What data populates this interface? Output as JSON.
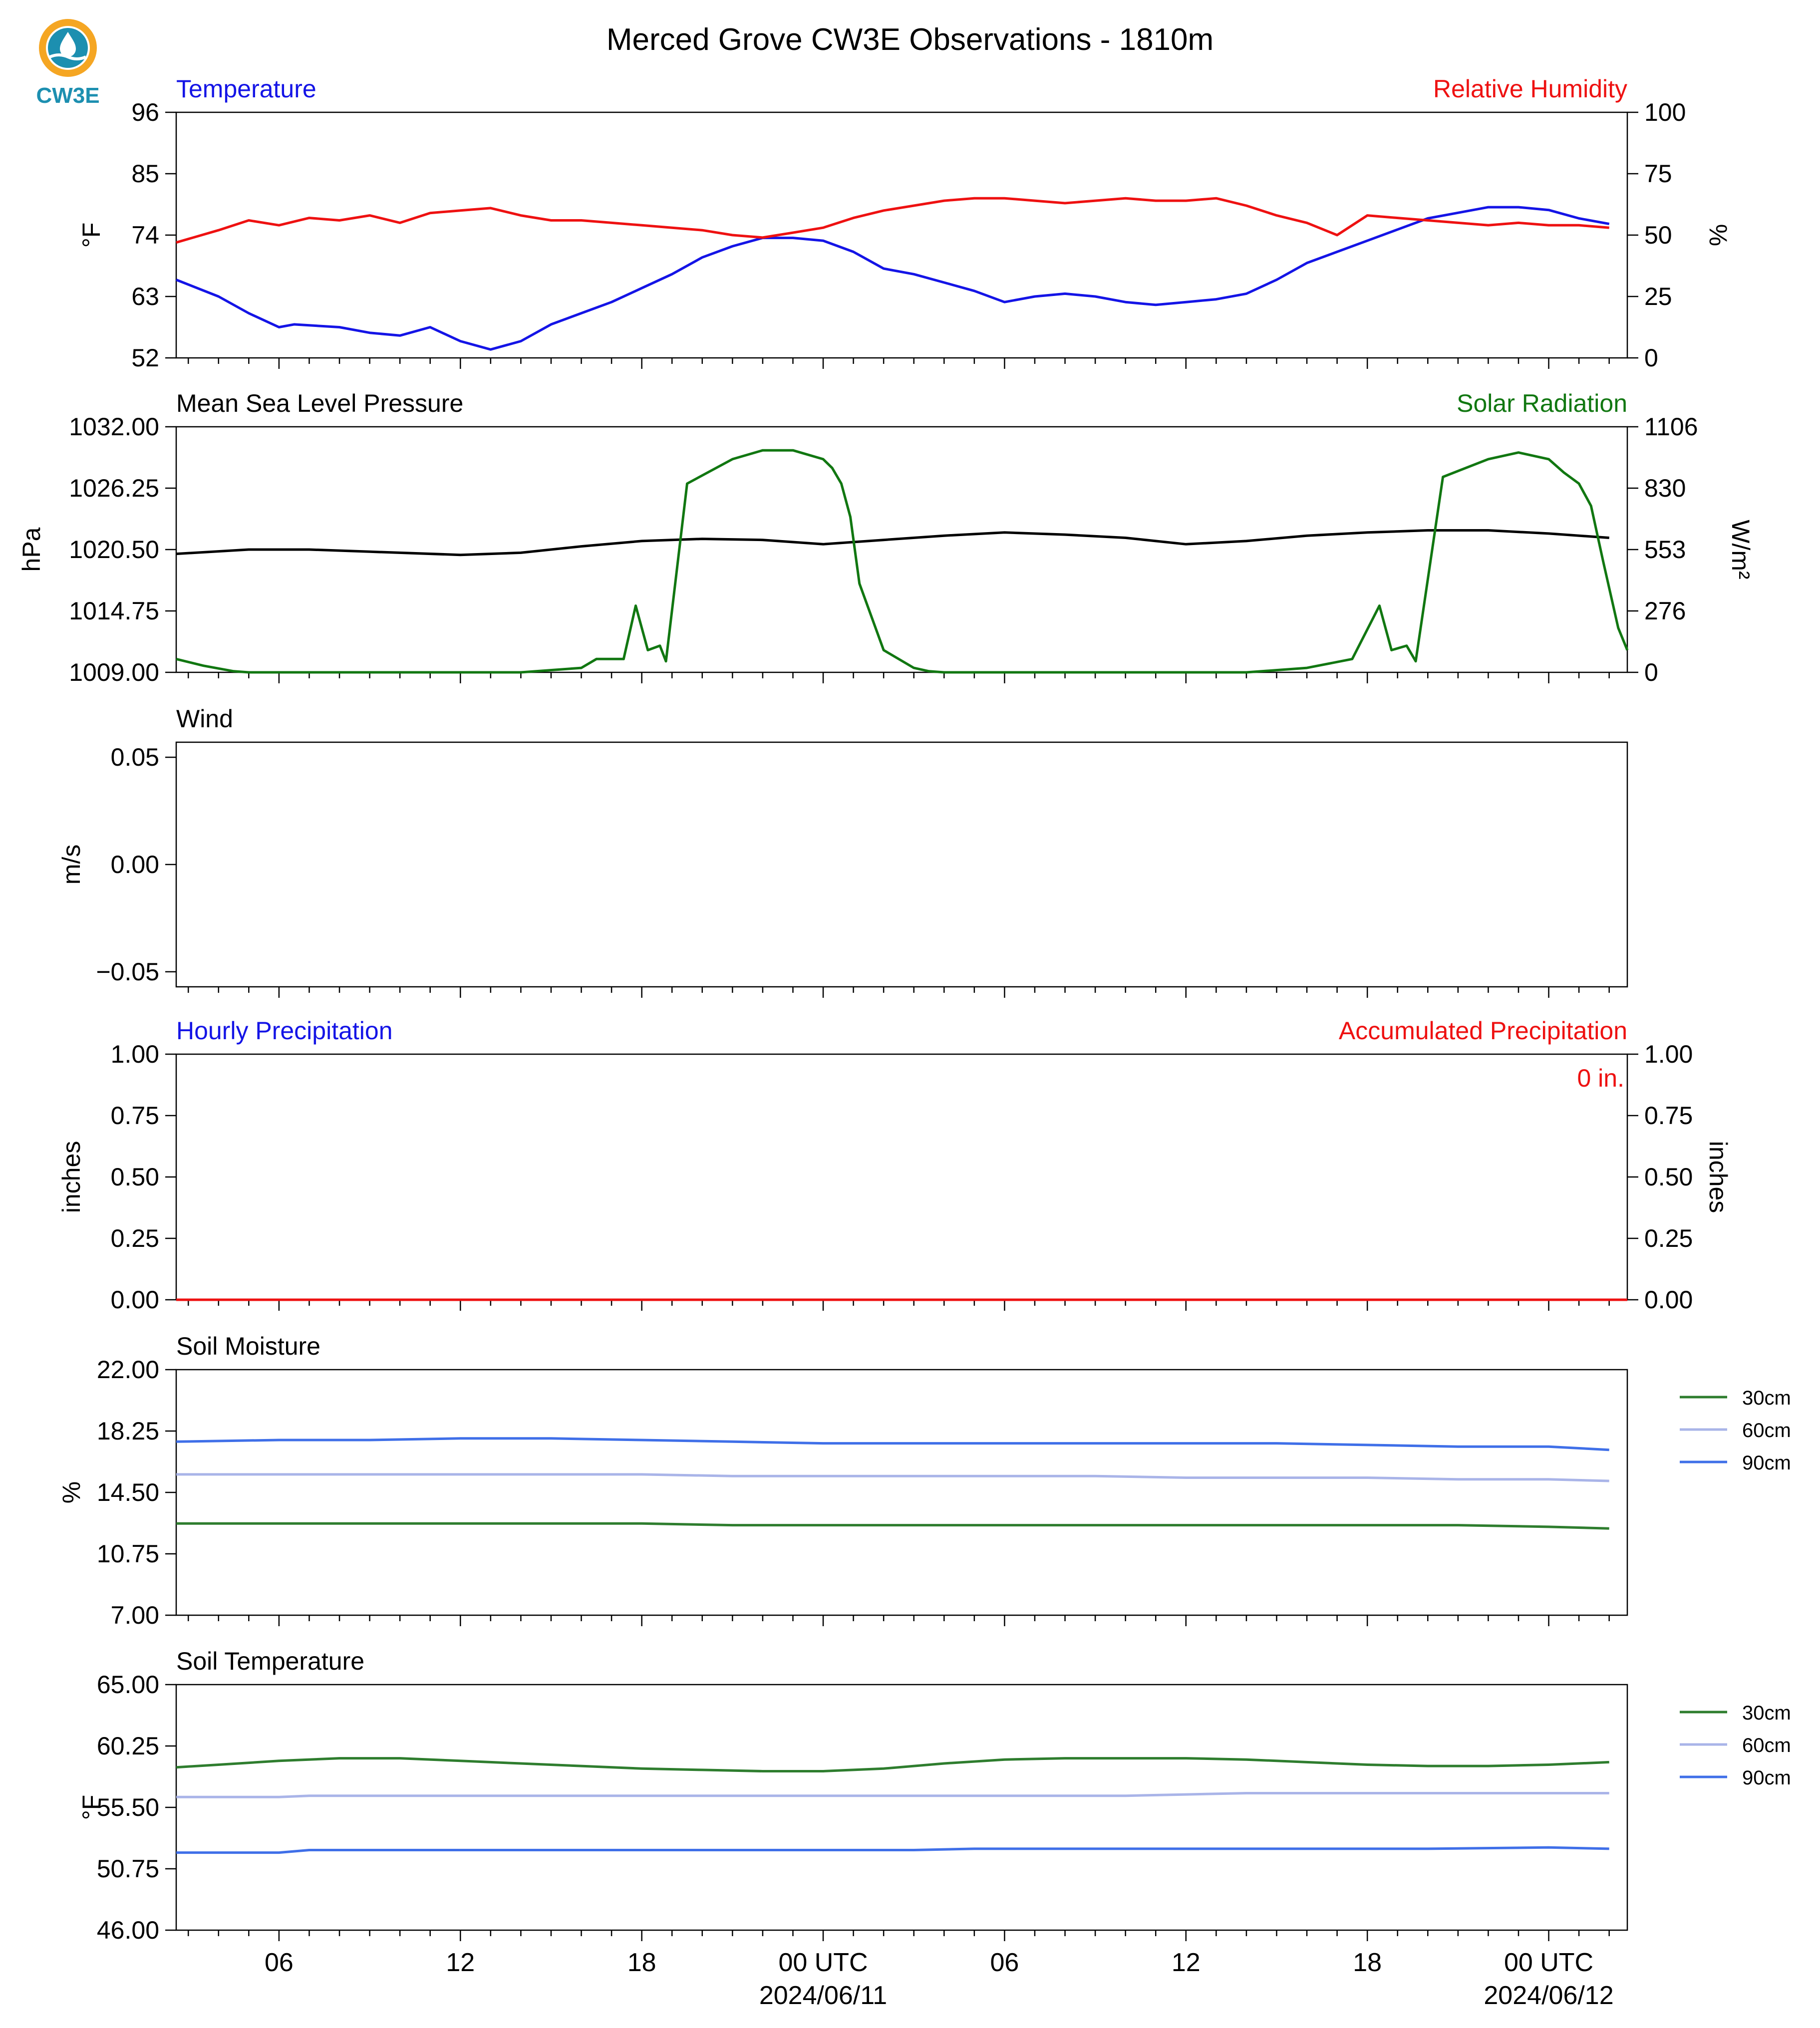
{
  "page": {
    "title": "Merced Grove CW3E Observations - 1810m",
    "logo_text": "CW3E"
  },
  "colors": {
    "blue": "#1414e6",
    "red": "#ee1111",
    "green": "#117711",
    "black": "#000000",
    "soil30": "#2e7d2e",
    "soil60": "#a9b4e8",
    "soil90": "#3f6fe8",
    "logo_orange": "#f5a623",
    "logo_teal": "#1c8fb0"
  },
  "x_axis": {
    "range_hours": [
      -21.4,
      26.6
    ],
    "ticks": [
      {
        "h": -18,
        "label": "06",
        "sub": ""
      },
      {
        "h": -12,
        "label": "12",
        "sub": ""
      },
      {
        "h": -6,
        "label": "18",
        "sub": ""
      },
      {
        "h": 0,
        "label": "00 UTC",
        "sub": "2024/06/11"
      },
      {
        "h": 6,
        "label": "06",
        "sub": ""
      },
      {
        "h": 12,
        "label": "12",
        "sub": ""
      },
      {
        "h": 18,
        "label": "18",
        "sub": ""
      },
      {
        "h": 24,
        "label": "00 UTC",
        "sub": "2024/06/12"
      }
    ]
  },
  "chart_data": [
    {
      "type": "line",
      "title_left": "Temperature",
      "title_right": "Relative Humidity",
      "ylabel_left": "°F",
      "ylabel_right": "%",
      "ylim_left": [
        52,
        96
      ],
      "ylim_right": [
        0,
        100
      ],
      "yticks_left": [
        "52",
        "63",
        "74",
        "85",
        "96"
      ],
      "yticks_right": [
        "0",
        "25",
        "50",
        "75",
        "100"
      ],
      "series": [
        {
          "name": "Temperature",
          "axis": "left",
          "color": "blue",
          "x": [
            -21.4,
            -20,
            -19,
            -18,
            -17.5,
            -16,
            -15,
            -14,
            -13,
            -12,
            -11,
            -10,
            -9,
            -8,
            -7,
            -6,
            -5,
            -4,
            -3,
            -2,
            -1,
            0,
            1,
            2,
            3,
            4,
            5,
            6,
            7,
            8,
            9,
            10,
            11,
            12,
            13,
            14,
            15,
            16,
            17,
            18,
            19,
            20,
            21,
            22,
            23,
            24,
            25,
            26
          ],
          "y": [
            66,
            63,
            60,
            57.5,
            58,
            57.5,
            56.5,
            56,
            57.5,
            55,
            53.5,
            55,
            58,
            60,
            62,
            64.5,
            67,
            70,
            72,
            73.5,
            73.5,
            73,
            71,
            68,
            67,
            65.5,
            64,
            62,
            63,
            63.5,
            63,
            62,
            61.5,
            62,
            62.5,
            63.5,
            66,
            69,
            71,
            73,
            75,
            77,
            78,
            79,
            79,
            78.5,
            77,
            76
          ]
        },
        {
          "name": "Relative Humidity",
          "axis": "right",
          "color": "red",
          "x": [
            -21.4,
            -20,
            -19,
            -18,
            -17,
            -16,
            -15,
            -14,
            -13,
            -12,
            -11,
            -10,
            -9,
            -8,
            -7,
            -6,
            -5,
            -4,
            -3,
            -2,
            -1,
            0,
            1,
            2,
            3,
            4,
            5,
            6,
            7,
            8,
            9,
            10,
            11,
            12,
            13,
            14,
            15,
            16,
            17,
            18,
            19,
            20,
            21,
            22,
            23,
            24,
            25,
            26
          ],
          "y": [
            47,
            52,
            56,
            54,
            57,
            56,
            58,
            55,
            59,
            60,
            61,
            58,
            56,
            56,
            55,
            54,
            53,
            52,
            50,
            49,
            51,
            53,
            57,
            60,
            62,
            64,
            65,
            65,
            64,
            63,
            64,
            65,
            64,
            64,
            65,
            62,
            58,
            55,
            50,
            58,
            57,
            56,
            55,
            54,
            55,
            54,
            54,
            53
          ]
        }
      ]
    },
    {
      "type": "line",
      "title_left": "Mean Sea Level Pressure",
      "title_right": "Solar Radiation",
      "ylabel_left": "hPa",
      "ylabel_right": "W/m²",
      "ylim_left": [
        1009,
        1032
      ],
      "ylim_right": [
        0,
        1106
      ],
      "yticks_left": [
        "1009.00",
        "1014.75",
        "1020.50",
        "1026.25",
        "1032.00"
      ],
      "yticks_right": [
        "0",
        "276",
        "553",
        "830",
        "1106"
      ],
      "series": [
        {
          "name": "Mean Sea Level Pressure",
          "axis": "left",
          "color": "black",
          "x": [
            -21.4,
            -19,
            -17,
            -15,
            -12,
            -10,
            -8,
            -6,
            -4,
            -2,
            0,
            2,
            4,
            6,
            8,
            10,
            12,
            14,
            16,
            18,
            20,
            22,
            24,
            26
          ],
          "y": [
            1020.1,
            1020.5,
            1020.5,
            1020.3,
            1020.0,
            1020.2,
            1020.8,
            1021.3,
            1021.5,
            1021.4,
            1021.0,
            1021.4,
            1021.8,
            1022.1,
            1021.9,
            1021.6,
            1021.0,
            1021.3,
            1021.8,
            1022.1,
            1022.3,
            1022.3,
            1022.0,
            1021.6
          ]
        },
        {
          "name": "Solar Radiation",
          "axis": "right",
          "color": "green",
          "x": [
            -21.4,
            -20.5,
            -19.5,
            -19,
            -10,
            -8,
            -7.5,
            -6.6,
            -6.2,
            -5.8,
            -5.4,
            -5.2,
            -4.5,
            -3,
            -2,
            -1,
            0,
            0.3,
            0.6,
            0.9,
            1.2,
            2,
            3,
            3.5,
            4,
            14,
            16,
            17.5,
            18.4,
            18.8,
            19.3,
            19.6,
            20.5,
            22,
            23,
            24,
            24.5,
            25,
            25.4,
            25.8,
            26.3,
            26.6
          ],
          "y": [
            60,
            30,
            5,
            0,
            0,
            20,
            60,
            60,
            300,
            100,
            120,
            50,
            850,
            960,
            1000,
            1000,
            960,
            920,
            850,
            700,
            400,
            100,
            20,
            5,
            0,
            0,
            20,
            60,
            300,
            100,
            120,
            50,
            880,
            960,
            990,
            960,
            900,
            850,
            750,
            500,
            200,
            100
          ]
        }
      ]
    },
    {
      "type": "line",
      "title_left": "Wind",
      "ylabel_left": "m/s",
      "ylim_left": [
        -0.057,
        0.057
      ],
      "yticks_left": [
        "−0.05",
        "0.00",
        "0.05"
      ],
      "series": []
    },
    {
      "type": "line",
      "title_left": "Hourly Precipitation",
      "title_right": "Accumulated Precipitation",
      "ylabel_left": "inches",
      "ylabel_right": "inches",
      "ylim_left": [
        0,
        1
      ],
      "ylim_right": [
        0,
        1
      ],
      "yticks_left": [
        "0.00",
        "0.25",
        "0.50",
        "0.75",
        "1.00"
      ],
      "yticks_right": [
        "0.00",
        "0.25",
        "0.50",
        "0.75",
        "1.00"
      ],
      "annotation": "0 in.",
      "series": [
        {
          "name": "Hourly Precipitation",
          "axis": "left",
          "color": "blue",
          "x": [
            -21.4,
            26.6
          ],
          "y": [
            0,
            0
          ]
        },
        {
          "name": "Accumulated Precipitation",
          "axis": "right",
          "color": "red",
          "x": [
            -21.4,
            26.6
          ],
          "y": [
            0,
            0
          ]
        }
      ]
    },
    {
      "type": "line",
      "title_left": "Soil Moisture",
      "ylabel_left": "%",
      "ylim_left": [
        7,
        22
      ],
      "yticks_left": [
        "7.00",
        "10.75",
        "14.50",
        "18.25",
        "22.00"
      ],
      "legend": [
        "30cm",
        "60cm",
        "90cm"
      ],
      "series": [
        {
          "name": "30cm",
          "color": "soil30",
          "x": [
            -21.4,
            -18,
            -15,
            -12,
            -9,
            -6,
            -3,
            0,
            3,
            6,
            9,
            12,
            15,
            18,
            21,
            24,
            26
          ],
          "y": [
            12.6,
            12.6,
            12.6,
            12.6,
            12.6,
            12.6,
            12.5,
            12.5,
            12.5,
            12.5,
            12.5,
            12.5,
            12.5,
            12.5,
            12.5,
            12.4,
            12.3
          ]
        },
        {
          "name": "60cm",
          "color": "soil60",
          "x": [
            -21.4,
            -18,
            -15,
            -12,
            -9,
            -6,
            -3,
            0,
            3,
            6,
            9,
            12,
            15,
            18,
            21,
            24,
            26
          ],
          "y": [
            15.6,
            15.6,
            15.6,
            15.6,
            15.6,
            15.6,
            15.5,
            15.5,
            15.5,
            15.5,
            15.5,
            15.4,
            15.4,
            15.4,
            15.3,
            15.3,
            15.2
          ]
        },
        {
          "name": "90cm",
          "color": "soil90",
          "x": [
            -21.4,
            -18,
            -15,
            -12,
            -9,
            -6,
            -3,
            0,
            3,
            6,
            9,
            12,
            15,
            18,
            21,
            24,
            26
          ],
          "y": [
            17.6,
            17.7,
            17.7,
            17.8,
            17.8,
            17.7,
            17.6,
            17.5,
            17.5,
            17.5,
            17.5,
            17.5,
            17.5,
            17.4,
            17.3,
            17.3,
            17.1
          ]
        }
      ]
    },
    {
      "type": "line",
      "title_left": "Soil Temperature",
      "ylabel_left": "°F",
      "ylim_left": [
        46,
        65
      ],
      "yticks_left": [
        "46.00",
        "50.75",
        "55.50",
        "60.25",
        "65.00"
      ],
      "legend": [
        "30cm",
        "60cm",
        "90cm"
      ],
      "series": [
        {
          "name": "30cm",
          "color": "soil30",
          "x": [
            -21.4,
            -20,
            -18,
            -16,
            -14,
            -12,
            -10,
            -8,
            -6,
            -4,
            -2,
            0,
            2,
            4,
            6,
            8,
            10,
            12,
            14,
            16,
            18,
            20,
            22,
            24,
            26
          ],
          "y": [
            58.6,
            58.8,
            59.1,
            59.3,
            59.3,
            59.1,
            58.9,
            58.7,
            58.5,
            58.4,
            58.3,
            58.3,
            58.5,
            58.9,
            59.2,
            59.3,
            59.3,
            59.3,
            59.2,
            59,
            58.8,
            58.7,
            58.7,
            58.8,
            59
          ]
        },
        {
          "name": "60cm",
          "color": "soil60",
          "x": [
            -21.4,
            -18,
            -17,
            -15,
            -10,
            -5,
            0,
            5,
            10,
            12,
            14,
            18,
            22,
            26
          ],
          "y": [
            56.3,
            56.3,
            56.4,
            56.4,
            56.4,
            56.4,
            56.4,
            56.4,
            56.4,
            56.5,
            56.6,
            56.6,
            56.6,
            56.6
          ]
        },
        {
          "name": "90cm",
          "color": "soil90",
          "x": [
            -21.4,
            -18,
            -17,
            -15,
            -10,
            -5,
            0,
            3,
            5,
            10,
            15,
            20,
            24,
            26
          ],
          "y": [
            52.0,
            52.0,
            52.2,
            52.2,
            52.2,
            52.2,
            52.2,
            52.2,
            52.3,
            52.3,
            52.3,
            52.3,
            52.4,
            52.3
          ]
        }
      ]
    }
  ]
}
